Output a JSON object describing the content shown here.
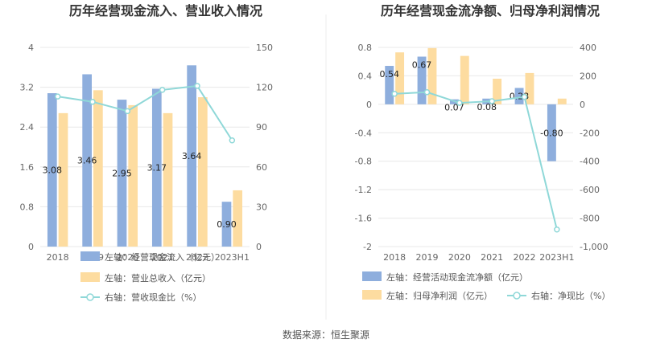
{
  "source_label": "数据来源：恒生聚源",
  "chart_data": [
    {
      "type": "bar",
      "title": "历年经营现金流入、营业收入情况",
      "categories": [
        "2018",
        "2019",
        "2020",
        "2021",
        "2022",
        "2023H1"
      ],
      "category_labels_shown": [
        "2018",
        "2019",
        "2020",
        "2021",
        "2022",
        "2023H1"
      ],
      "series": [
        {
          "name": "左轴：经营现金流入（亿元）",
          "axis": "left",
          "kind": "bar",
          "color": "#8eaedd",
          "values": [
            3.08,
            3.46,
            2.95,
            3.17,
            3.64,
            0.9
          ],
          "labels": [
            "3.08",
            "3.46",
            "2.95",
            "3.17",
            "3.64",
            "0.90"
          ]
        },
        {
          "name": "左轴：营业总收入（亿元）",
          "axis": "left",
          "kind": "bar",
          "color": "#fddca0",
          "values": [
            2.68,
            3.14,
            2.84,
            2.68,
            3.0,
            1.13
          ]
        },
        {
          "name": "右轴：营收现金比（%）",
          "axis": "right",
          "kind": "line",
          "color": "#8fd8d8",
          "values": [
            113,
            109,
            102,
            118,
            121,
            80
          ]
        }
      ],
      "left_axis": {
        "ticks": [
          "0",
          "0.8",
          "1.6",
          "2.4",
          "3.2",
          "4"
        ],
        "min": 0,
        "max": 4
      },
      "right_axis": {
        "ticks": [
          "0",
          "30",
          "60",
          "90",
          "120",
          "150"
        ],
        "min": 0,
        "max": 150
      },
      "legend_position": "bottom"
    },
    {
      "type": "bar",
      "title": "历年经营现金流净额、归母净利润情况",
      "categories": [
        "2018",
        "2019",
        "2020",
        "2021",
        "2022",
        "2023H1"
      ],
      "series": [
        {
          "name": "左轴：经营活动现金流净额（亿元）",
          "axis": "left",
          "kind": "bar",
          "color": "#8eaedd",
          "values": [
            0.54,
            0.67,
            0.07,
            0.08,
            0.23,
            -0.8
          ],
          "labels": [
            "0.54",
            "0.67",
            "0.07",
            "0.08",
            "0.23",
            "-0.80"
          ]
        },
        {
          "name": "左轴：归母净利润（亿元）",
          "axis": "left",
          "kind": "bar",
          "color": "#fddca0",
          "values": [
            0.73,
            0.79,
            0.68,
            0.36,
            0.44,
            0.08
          ]
        },
        {
          "name": "右轴：净现比（%）",
          "axis": "right",
          "kind": "line",
          "color": "#8fd8d8",
          "values": [
            74,
            85,
            10,
            22,
            52,
            -880
          ]
        }
      ],
      "left_axis": {
        "ticks": [
          "-2",
          "-1.6",
          "-1.2",
          "-0.8",
          "-0.4",
          "0",
          "0.4",
          "0.8"
        ],
        "min": -2,
        "max": 0.8
      },
      "right_axis": {
        "ticks": [
          "-1,000",
          "-800",
          "-600",
          "-400",
          "-200",
          "0",
          "200",
          "400"
        ],
        "min": -1000,
        "max": 400
      },
      "legend_position": "bottom"
    }
  ]
}
